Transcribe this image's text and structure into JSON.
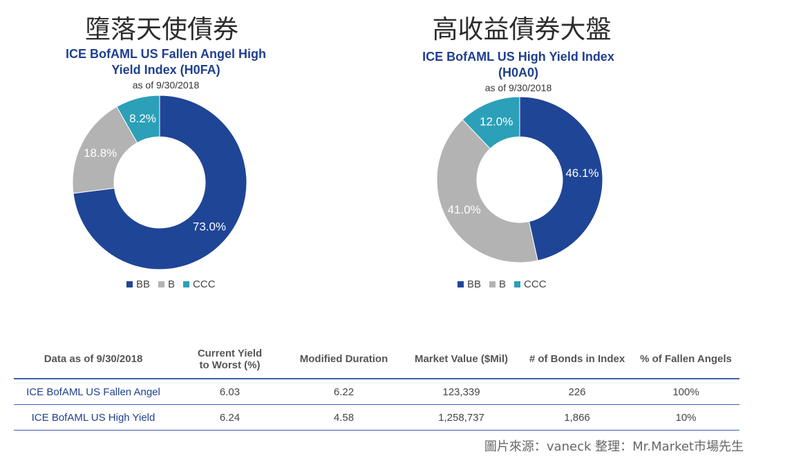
{
  "left": {
    "heading": "墮落天使債券",
    "subtitle_line1": "ICE BofAML US Fallen Angel High",
    "subtitle_line2": "Yield Index (H0FA)",
    "asof": "as of 9/30/2018"
  },
  "right": {
    "heading": "高收益債券大盤",
    "subtitle_line1": "ICE BofAML US High Yield Index",
    "subtitle_line2": "(H0A0)",
    "asof": "as of 9/30/2018"
  },
  "legend": [
    {
      "label": "BB",
      "color": "#1f4597"
    },
    {
      "label": "B",
      "color": "#b3b3b3"
    },
    {
      "label": "CCC",
      "color": "#2ca0b8"
    }
  ],
  "chart_data": [
    {
      "type": "pie",
      "title": "ICE BofAML US Fallen Angel High Yield Index (H0FA)",
      "categories": [
        "BB",
        "B",
        "CCC"
      ],
      "values": [
        73.0,
        18.8,
        8.2
      ],
      "labels": [
        "73.0%",
        "18.8%",
        "8.2%"
      ],
      "colors": [
        "#1f4597",
        "#b3b3b3",
        "#2ca0b8"
      ],
      "donut": true,
      "legend": "bottom"
    },
    {
      "type": "pie",
      "title": "ICE BofAML US High Yield Index (H0A0)",
      "categories": [
        "BB",
        "B",
        "CCC"
      ],
      "values": [
        46.1,
        41.0,
        12.0
      ],
      "labels": [
        "46.1%",
        "41.0%",
        "12.0%"
      ],
      "colors": [
        "#1f4597",
        "#b3b3b3",
        "#2ca0b8"
      ],
      "donut": true,
      "legend": "bottom"
    }
  ],
  "table": {
    "headers": [
      "Data as of 9/30/2018",
      "Current Yield\nto Worst (%)",
      "Modified Duration",
      "Market Value ($Mil)",
      "# of Bonds in Index",
      "% of Fallen Angels"
    ],
    "rows": [
      [
        "ICE BofAML US Fallen Angel",
        "6.03",
        "6.22",
        "123,339",
        "226",
        "100%"
      ],
      [
        "ICE BofAML US High Yield",
        "6.24",
        "4.58",
        "1,258,737",
        "1,866",
        "10%"
      ]
    ]
  },
  "source": "圖片來源：vaneck  整理：Mr.Market市場先生"
}
